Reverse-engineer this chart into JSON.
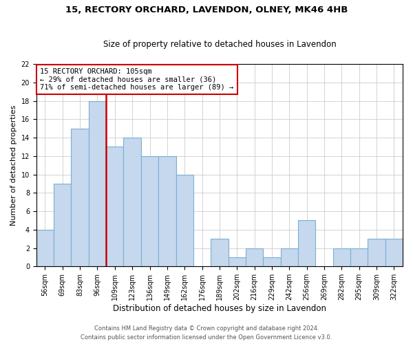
{
  "title1": "15, RECTORY ORCHARD, LAVENDON, OLNEY, MK46 4HB",
  "title2": "Size of property relative to detached houses in Lavendon",
  "xlabel": "Distribution of detached houses by size in Lavendon",
  "ylabel": "Number of detached properties",
  "categories": [
    "56sqm",
    "69sqm",
    "83sqm",
    "96sqm",
    "109sqm",
    "123sqm",
    "136sqm",
    "149sqm",
    "162sqm",
    "176sqm",
    "189sqm",
    "202sqm",
    "216sqm",
    "229sqm",
    "242sqm",
    "256sqm",
    "269sqm",
    "282sqm",
    "295sqm",
    "309sqm",
    "322sqm"
  ],
  "values": [
    4,
    9,
    15,
    18,
    13,
    14,
    12,
    12,
    10,
    0,
    3,
    1,
    2,
    1,
    2,
    5,
    0,
    2,
    2,
    3,
    3
  ],
  "bar_color": "#c5d8ed",
  "bar_edge_color": "#7aafd4",
  "vline_position": 3.5,
  "vline_color": "#cc0000",
  "annotation_label": "15 RECTORY ORCHARD: 105sqm",
  "annotation_line1": "← 29% of detached houses are smaller (36)",
  "annotation_line2": "71% of semi-detached houses are larger (89) →",
  "ylim": [
    0,
    22
  ],
  "yticks": [
    0,
    2,
    4,
    6,
    8,
    10,
    12,
    14,
    16,
    18,
    20,
    22
  ],
  "footer1": "Contains HM Land Registry data © Crown copyright and database right 2024.",
  "footer2": "Contains public sector information licensed under the Open Government Licence v3.0.",
  "bg_color": "#ffffff",
  "grid_color": "#cccccc",
  "title1_fontsize": 9.5,
  "title2_fontsize": 8.5,
  "ylabel_fontsize": 8,
  "xlabel_fontsize": 8.5,
  "tick_fontsize": 7,
  "annot_fontsize": 7.5,
  "footer_fontsize": 6
}
